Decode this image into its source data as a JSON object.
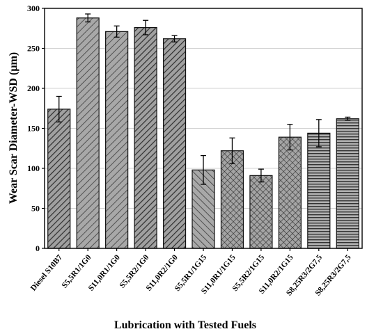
{
  "chart_data": {
    "type": "bar",
    "title": "",
    "xlabel": "Lubrication with Tested Fuels",
    "ylabel": "Wear Scar Diameter-WSD (µm)",
    "ylim": [
      0,
      300
    ],
    "yticks": [
      0,
      50,
      100,
      150,
      200,
      250,
      300
    ],
    "grid": "horizontal",
    "categories": [
      "Diesel S10B7",
      "S5,5R1/1G0",
      "S11,0R1/1G0",
      "S5,5R2/1G0",
      "S11,0R2/1G0",
      "S5,5R1/1G15",
      "S11,0R1/1G15",
      "S5,5R2/1G15",
      "S11,0R2/1G15",
      "S8,25R3/2G7,5",
      "S8,25R3/2G7,5"
    ],
    "values": [
      174,
      288,
      271,
      276,
      262,
      98,
      122,
      91,
      139,
      144,
      162
    ],
    "error": [
      16,
      5,
      7,
      9,
      4,
      18,
      16,
      8,
      16,
      17,
      2
    ],
    "patterns": [
      "diag-dense",
      "diag-sparse",
      "diag-sparse",
      "diag-dense",
      "diag-dense",
      "diag-sparse-rev",
      "crosshatch",
      "crosshatch",
      "crosshatch",
      "horizontal",
      "horizontal"
    ],
    "colors": {
      "bar_fill": "#9e9e9e",
      "pattern_line": "#333333",
      "bar_stroke": "#111111",
      "grid": "#d0d0d0"
    }
  }
}
